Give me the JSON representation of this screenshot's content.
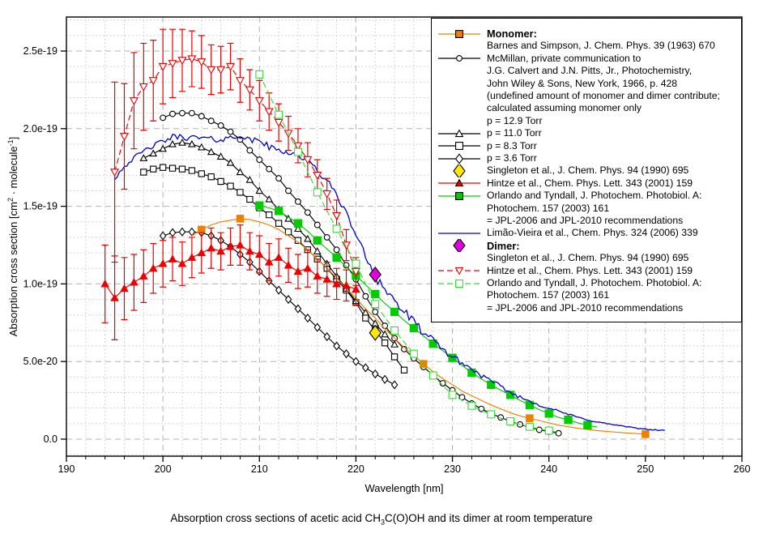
{
  "caption": {
    "pre": "Absorption cross sections of acetic acid CH",
    "sub": "3",
    "post": "C(O)OH and its dimer at room temperature"
  },
  "x_axis_label": "Wavelength [nm]",
  "y_axis_label": {
    "p1": "Absorption cross section [cm",
    "sup1": "2",
    "p2": " · molecule",
    "sup2": "-1",
    "p3": "]"
  },
  "colors": {
    "orange": "#ee8000",
    "red": "#ee0000",
    "green_solid": "#00cc00",
    "green_dashed": "#33dd33",
    "blue": "#0000cc",
    "magenta": "#e000e0",
    "yellow": "#ffe800",
    "black": "#000000",
    "grid_major": "#b3b3b3",
    "grid_minor": "#c6c6c6"
  },
  "chart_data": {
    "type": "line",
    "title": "Absorption cross sections of acetic acid CH3C(O)OH and its dimer at room temperature",
    "xlabel": "Wavelength [nm]",
    "ylabel": "Absorption cross section [cm2 molecule-1]",
    "x_unit": "nm",
    "y_unit": "1e-19 cm^2 molecule^-1",
    "xlim": [
      190,
      260
    ],
    "ylim_units_1e19": [
      -0.11,
      2.72
    ],
    "grid": true,
    "x_ticks": [
      190,
      200,
      210,
      220,
      230,
      240,
      250,
      260
    ],
    "y_ticks": [
      {
        "v": 0.0,
        "label": "0.0"
      },
      {
        "v": 0.5,
        "label": "5.0e-20"
      },
      {
        "v": 1.0,
        "label": "1.0e-19"
      },
      {
        "v": 1.5,
        "label": "1.5e-19"
      },
      {
        "v": 2.0,
        "label": "2.0e-19"
      },
      {
        "v": 2.5,
        "label": "2.5e-19"
      }
    ],
    "series": [
      {
        "id": "p36",
        "name": "McMillan p = 3.6 Torr",
        "color": "#000000",
        "line": "solid",
        "marker": "diamond",
        "marker_fill": "open",
        "msize": 3.6,
        "x_start": 200,
        "x_step": 1,
        "y": [
          1.31,
          1.33,
          1.335,
          1.335,
          1.33,
          1.31,
          1.28,
          1.24,
          1.19,
          1.14,
          1.08,
          1.02,
          0.96,
          0.9,
          0.84,
          0.78,
          0.72,
          0.66,
          0.6,
          0.55,
          0.5,
          0.46,
          0.42,
          0.385,
          0.35
        ]
      },
      {
        "id": "p83",
        "name": "McMillan p = 8.3 Torr",
        "color": "#000000",
        "line": "solid",
        "marker": "square",
        "marker_fill": "open",
        "msize": 3.6,
        "x_start": 198,
        "x_step": 1,
        "y": [
          1.72,
          1.74,
          1.75,
          1.745,
          1.74,
          1.73,
          1.71,
          1.69,
          1.66,
          1.63,
          1.59,
          1.545,
          1.49,
          1.445,
          1.39,
          1.335,
          1.28,
          1.22,
          1.16,
          1.1,
          1.03,
          0.96,
          0.88,
          0.78,
          0.7,
          0.62,
          0.53,
          0.445
        ]
      },
      {
        "id": "p11",
        "name": "McMillan p = 11.0 Torr",
        "color": "#000000",
        "line": "solid",
        "marker": "triangle-up",
        "marker_fill": "open",
        "msize": 3.9,
        "x_start": 198,
        "x_step": 1,
        "y": [
          1.81,
          1.84,
          1.87,
          1.9,
          1.91,
          1.9,
          1.88,
          1.85,
          1.82,
          1.78,
          1.72,
          1.67,
          1.6,
          1.545,
          1.48,
          1.42,
          1.355,
          1.29,
          1.21,
          1.13,
          1.05,
          0.97,
          0.89,
          0.815,
          0.745,
          0.675,
          0.61
        ]
      },
      {
        "id": "mcmillan",
        "name": "McMillan p = 12.9 Torr",
        "color": "#000000",
        "line": "solid",
        "marker": "circle",
        "marker_fill": "open",
        "msize": 3.4,
        "x_start": 200,
        "x_step": 1,
        "y": [
          2.07,
          2.095,
          2.1,
          2.1,
          2.08,
          2.05,
          2.02,
          1.98,
          1.93,
          1.86,
          1.8,
          1.74,
          1.68,
          1.6,
          1.53,
          1.46,
          1.38,
          1.3,
          1.22,
          1.12,
          1.03,
          0.92,
          0.82,
          0.73,
          0.65,
          0.58,
          0.52,
          0.465,
          0.41,
          0.36,
          0.315,
          0.27,
          0.23,
          0.195,
          0.165,
          0.14,
          0.115,
          0.095,
          0.075,
          0.06,
          0.048,
          0.038
        ]
      },
      {
        "id": "barnes",
        "name": "Barnes and Simpson (monomer)",
        "color": "#ee8000",
        "line": "solid",
        "marker": "square",
        "marker_fill": "filled",
        "msize": 4.2,
        "x_start": 203,
        "x_step": 1,
        "marker_x": [
          204,
          208,
          227,
          238,
          250
        ],
        "y": [
          1.31,
          1.35,
          1.38,
          1.4,
          1.41,
          1.42,
          1.415,
          1.4,
          1.38,
          1.35,
          1.31,
          1.27,
          1.22,
          1.16,
          1.1,
          1.04,
          0.97,
          0.91,
          0.84,
          0.78,
          0.71,
          0.65,
          0.59,
          0.54,
          0.485,
          0.435,
          0.39,
          0.35,
          0.31,
          0.28,
          0.25,
          0.22,
          0.195,
          0.17,
          0.15,
          0.135,
          0.12,
          0.105,
          0.09,
          0.08,
          0.07,
          0.062,
          0.055,
          0.05,
          0.045,
          0.04,
          0.036,
          0.032
        ]
      },
      {
        "id": "orlando_monomer",
        "name": "Orlando and Tyndall (monomer, JPL)",
        "color": "#00cc00",
        "line": "solid",
        "marker": "square",
        "marker_fill": "filled",
        "msize": 4.6,
        "marker_step": 2,
        "x_start": 210,
        "x_step": 1,
        "y": [
          1.505,
          1.49,
          1.47,
          1.43,
          1.39,
          1.34,
          1.28,
          1.225,
          1.17,
          1.11,
          1.054,
          0.995,
          0.935,
          0.875,
          0.82,
          0.765,
          0.715,
          0.665,
          0.615,
          0.57,
          0.524,
          0.475,
          0.428,
          0.388,
          0.35,
          0.315,
          0.285,
          0.25,
          0.22,
          0.19,
          0.165,
          0.14,
          0.125,
          0.105,
          0.09,
          0.078
        ]
      },
      {
        "id": "limao",
        "name": "Limao-Vieira et al. (monomer)",
        "color": "#0000cc",
        "line": "solid",
        "marker": "none",
        "noisy": true,
        "x_start": 195,
        "x_step": 1,
        "y": [
          1.68,
          1.76,
          1.81,
          1.855,
          1.89,
          1.92,
          1.945,
          1.95,
          1.94,
          1.94,
          1.93,
          1.93,
          1.94,
          1.96,
          1.92,
          1.93,
          1.88,
          1.86,
          1.85,
          1.83,
          1.79,
          1.73,
          1.66,
          1.58,
          1.45,
          1.32,
          1.18,
          1.06,
          0.97,
          0.89,
          0.82,
          0.75,
          0.69,
          0.63,
          0.58,
          0.53,
          0.49,
          0.45,
          0.41,
          0.37,
          0.34,
          0.3,
          0.27,
          0.245,
          0.22,
          0.2,
          0.18,
          0.16,
          0.14,
          0.125,
          0.11,
          0.1,
          0.09,
          0.08,
          0.07,
          0.065,
          0.06,
          0.055
        ]
      },
      {
        "id": "hintze_monomer",
        "name": "Hintze et al. (monomer)",
        "color": "#ee0000",
        "line": "solid",
        "marker": "triangle-up",
        "marker_fill": "filled",
        "msize": 4.4,
        "x_start": 194,
        "x_step": 1,
        "y": [
          1.0,
          0.91,
          0.97,
          1.01,
          1.05,
          1.1,
          1.13,
          1.16,
          1.13,
          1.17,
          1.2,
          1.23,
          1.21,
          1.24,
          1.25,
          1.21,
          1.19,
          1.14,
          1.17,
          1.12,
          1.08,
          1.1,
          1.05,
          1.03,
          1.0,
          0.99,
          0.965
        ],
        "err": [
          0.25,
          0.27,
          0.2,
          0.18,
          0.17,
          0.16,
          0.15,
          0.14,
          0.14,
          0.13,
          0.13,
          0.13,
          0.12,
          0.12,
          0.13,
          0.12,
          0.12,
          0.12,
          0.12,
          0.11,
          0.11,
          0.12,
          0.11,
          0.11,
          0.1,
          0.1,
          0.1
        ]
      },
      {
        "id": "hintze_dimer",
        "name": "Hintze et al. (dimer)",
        "color": "#ee0000",
        "line": "dashed",
        "marker": "triangle-down",
        "marker_fill": "open",
        "msize": 4.6,
        "x_start": 195,
        "x_step": 1,
        "y": [
          1.72,
          1.95,
          2.18,
          2.27,
          2.31,
          2.4,
          2.42,
          2.44,
          2.45,
          2.43,
          2.38,
          2.38,
          2.4,
          2.31,
          2.25,
          2.18,
          2.11,
          2.04,
          1.97,
          1.89,
          1.8,
          1.7,
          1.58,
          1.44,
          1.25,
          1.08
        ],
        "err": [
          0.58,
          0.34,
          0.31,
          0.28,
          0.26,
          0.24,
          0.22,
          0.2,
          0.18,
          0.17,
          0.16,
          0.15,
          0.15,
          0.14,
          0.13,
          0.13,
          0.12,
          0.12,
          0.11,
          0.11,
          0.11,
          0.1,
          0.1,
          0.1,
          0.1,
          0.09
        ]
      },
      {
        "id": "orlando_dimer",
        "name": "Orlando and Tyndall (dimer, JPL)",
        "color": "#33dd33",
        "line": "dashed",
        "marker": "square",
        "marker_fill": "open",
        "msize": 4.4,
        "marker_step": 2,
        "x_start": 210,
        "x_step": 1,
        "y": [
          2.35,
          2.22,
          2.09,
          1.97,
          1.85,
          1.72,
          1.59,
          1.47,
          1.355,
          1.24,
          1.13,
          1.0,
          0.87,
          0.785,
          0.7,
          0.625,
          0.55,
          0.475,
          0.41,
          0.345,
          0.285,
          0.25,
          0.215,
          0.185,
          0.16,
          0.135,
          0.115,
          0.095,
          0.08,
          0.065,
          0.055,
          0.045
        ]
      },
      {
        "id": "singleton_monomer",
        "name": "Singleton et al. (monomer)",
        "color": "#ffe800",
        "stroke": "#000000",
        "line": "none",
        "marker": "diamond",
        "marker_fill": "filled",
        "msize": 7,
        "x": [
          222
        ],
        "y": [
          0.685
        ]
      },
      {
        "id": "singleton_dimer",
        "name": "Singleton et al. (dimer)",
        "color": "#e000e0",
        "stroke": "#000000",
        "line": "none",
        "marker": "diamond",
        "marker_fill": "filled",
        "msize": 7,
        "x": [
          222
        ],
        "y": [
          1.06
        ]
      }
    ]
  },
  "legend": {
    "entries": [
      {
        "first_line": 1,
        "bold_first": true,
        "line": "solid",
        "line_color": "#ee8000",
        "marker": "square",
        "marker_color": "#ee8000",
        "marker_fill": "filled",
        "lines": [
          "Monomer:",
          "Barnes and Simpson, J. Chem. Phys. 39 (1963) 670"
        ]
      },
      {
        "first_line": 3,
        "bold_first": false,
        "line": "solid",
        "line_color": "#000000",
        "marker": "circle",
        "marker_color": "#000000",
        "marker_fill": "open",
        "lines": [
          "McMillan, private communication to",
          "J.G. Calvert and J.N. Pitts, Jr., Photochemistry,",
          "John Wiley & Sons, New York, 1966, p. 428",
          "(undefined amount of monomer and dimer contribute;",
          "calculated assuming monomer only",
          "p = 12.9 Torr"
        ]
      },
      {
        "first_line": 9,
        "bold_first": false,
        "line": "solid",
        "line_color": "#000000",
        "marker": "triangle-up",
        "marker_color": "#000000",
        "marker_fill": "open",
        "lines": [
          "p = 11.0 Torr"
        ]
      },
      {
        "first_line": 10,
        "bold_first": false,
        "line": "solid",
        "line_color": "#000000",
        "marker": "square",
        "marker_color": "#000000",
        "marker_fill": "open",
        "lines": [
          "p = 8.3 Torr"
        ]
      },
      {
        "first_line": 11,
        "bold_first": false,
        "line": "solid",
        "line_color": "#000000",
        "marker": "diamond",
        "marker_color": "#000000",
        "marker_fill": "open",
        "lines": [
          "p = 3.6 Torr"
        ]
      },
      {
        "first_line": 12,
        "bold_first": false,
        "line": "none",
        "line_color": "#000000",
        "marker": "diamond",
        "marker_color": "#ffe800",
        "marker_fill": "filled",
        "marker_big": true,
        "lines": [
          "Singleton et al., J. Chem. Phys. 94 (1990) 695"
        ]
      },
      {
        "first_line": 13,
        "bold_first": false,
        "line": "solid",
        "line_color": "#ee0000",
        "marker": "triangle-up",
        "marker_color": "#ee0000",
        "marker_fill": "filled",
        "lines": [
          "Hintze et al., Chem. Phys. Lett. 343 (2001) 159"
        ]
      },
      {
        "first_line": 14,
        "bold_first": false,
        "line": "solid",
        "line_color": "#00cc00",
        "marker": "square",
        "marker_color": "#00cc00",
        "marker_fill": "filled",
        "lines": [
          "Orlando and Tyndall, J. Photochem. Photobiol. A:",
          "Photochem. 157 (2003) 161",
          "= JPL-2006 and JPL-2010 recommendations"
        ]
      },
      {
        "first_line": 17,
        "bold_first": false,
        "line": "solid",
        "line_color": "#0000cc",
        "marker": "none",
        "marker_color": "#0000cc",
        "marker_fill": "open",
        "lines": [
          "Limão-Vieira et al., Chem. Phys. 324 (2006) 339"
        ]
      },
      {
        "first_line": 18,
        "bold_first": true,
        "line": "none",
        "line_color": "#000000",
        "marker": "diamond",
        "marker_color": "#e000e0",
        "marker_fill": "filled",
        "marker_big": true,
        "lines": [
          "Dimer:",
          "Singleton et al., J. Chem. Phys. 94 (1990) 695"
        ]
      },
      {
        "first_line": 20,
        "bold_first": false,
        "line": "dashed",
        "line_color": "#ee0000",
        "marker": "triangle-down",
        "marker_color": "#ee0000",
        "marker_fill": "open",
        "lines": [
          "Hintze et al., Chem. Phys. Lett. 343 (2001) 159"
        ]
      },
      {
        "first_line": 21,
        "bold_first": false,
        "line": "dashed",
        "line_color": "#33dd33",
        "marker": "square",
        "marker_color": "#33dd33",
        "marker_fill": "open",
        "lines": [
          "Orlando and Tyndall, J. Photochem. Photobiol. A:",
          "Photochem. 157 (2003) 161",
          "= JPL-2006 and JPL-2010 recommendations"
        ]
      }
    ]
  }
}
